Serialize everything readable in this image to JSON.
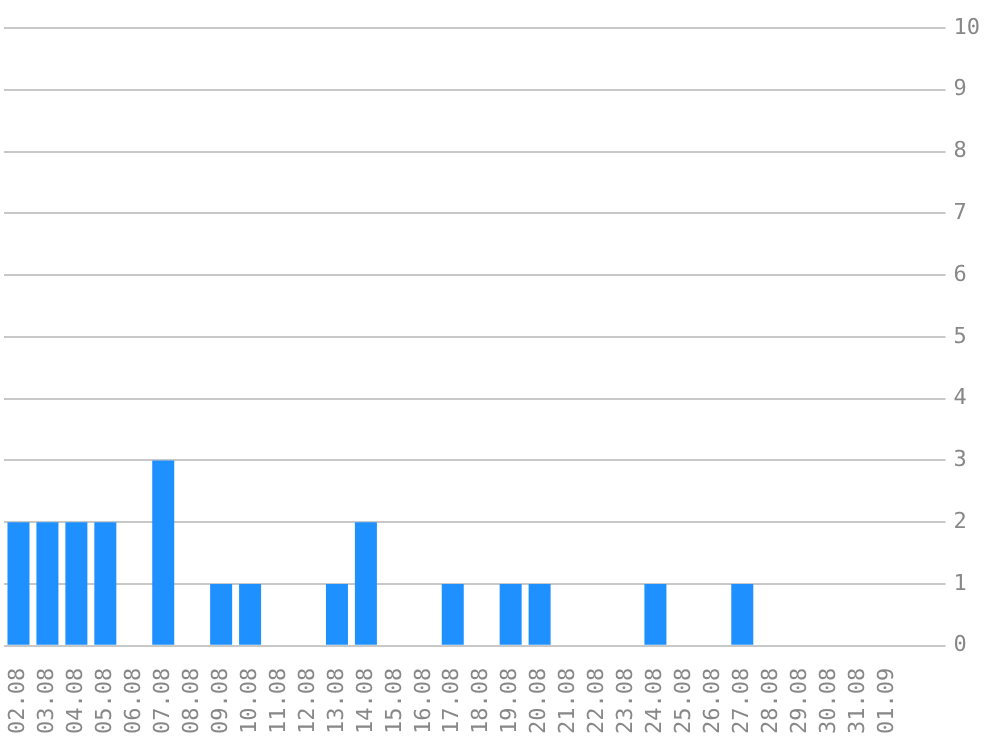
{
  "chart_data": {
    "type": "bar",
    "categories": [
      "02.08",
      "03.08",
      "04.08",
      "05.08",
      "06.08",
      "07.08",
      "08.08",
      "09.08",
      "10.08",
      "11.08",
      "12.08",
      "13.08",
      "14.08",
      "15.08",
      "16.08",
      "17.08",
      "18.08",
      "19.08",
      "20.08",
      "21.08",
      "22.08",
      "23.08",
      "24.08",
      "25.08",
      "26.08",
      "27.08",
      "28.08",
      "29.08",
      "30.08",
      "31.08",
      "01.09"
    ],
    "values": [
      2,
      2,
      2,
      2,
      0,
      3,
      0,
      1,
      1,
      0,
      0,
      1,
      2,
      0,
      0,
      1,
      0,
      1,
      1,
      0,
      0,
      0,
      1,
      0,
      0,
      1,
      0,
      0,
      0,
      0,
      0
    ],
    "color": "#1e90ff",
    "ylim": [
      0,
      10
    ],
    "yticks": [
      0,
      1,
      2,
      3,
      4,
      5,
      6,
      7,
      8,
      9,
      10
    ],
    "grid": "y",
    "legend": false
  }
}
